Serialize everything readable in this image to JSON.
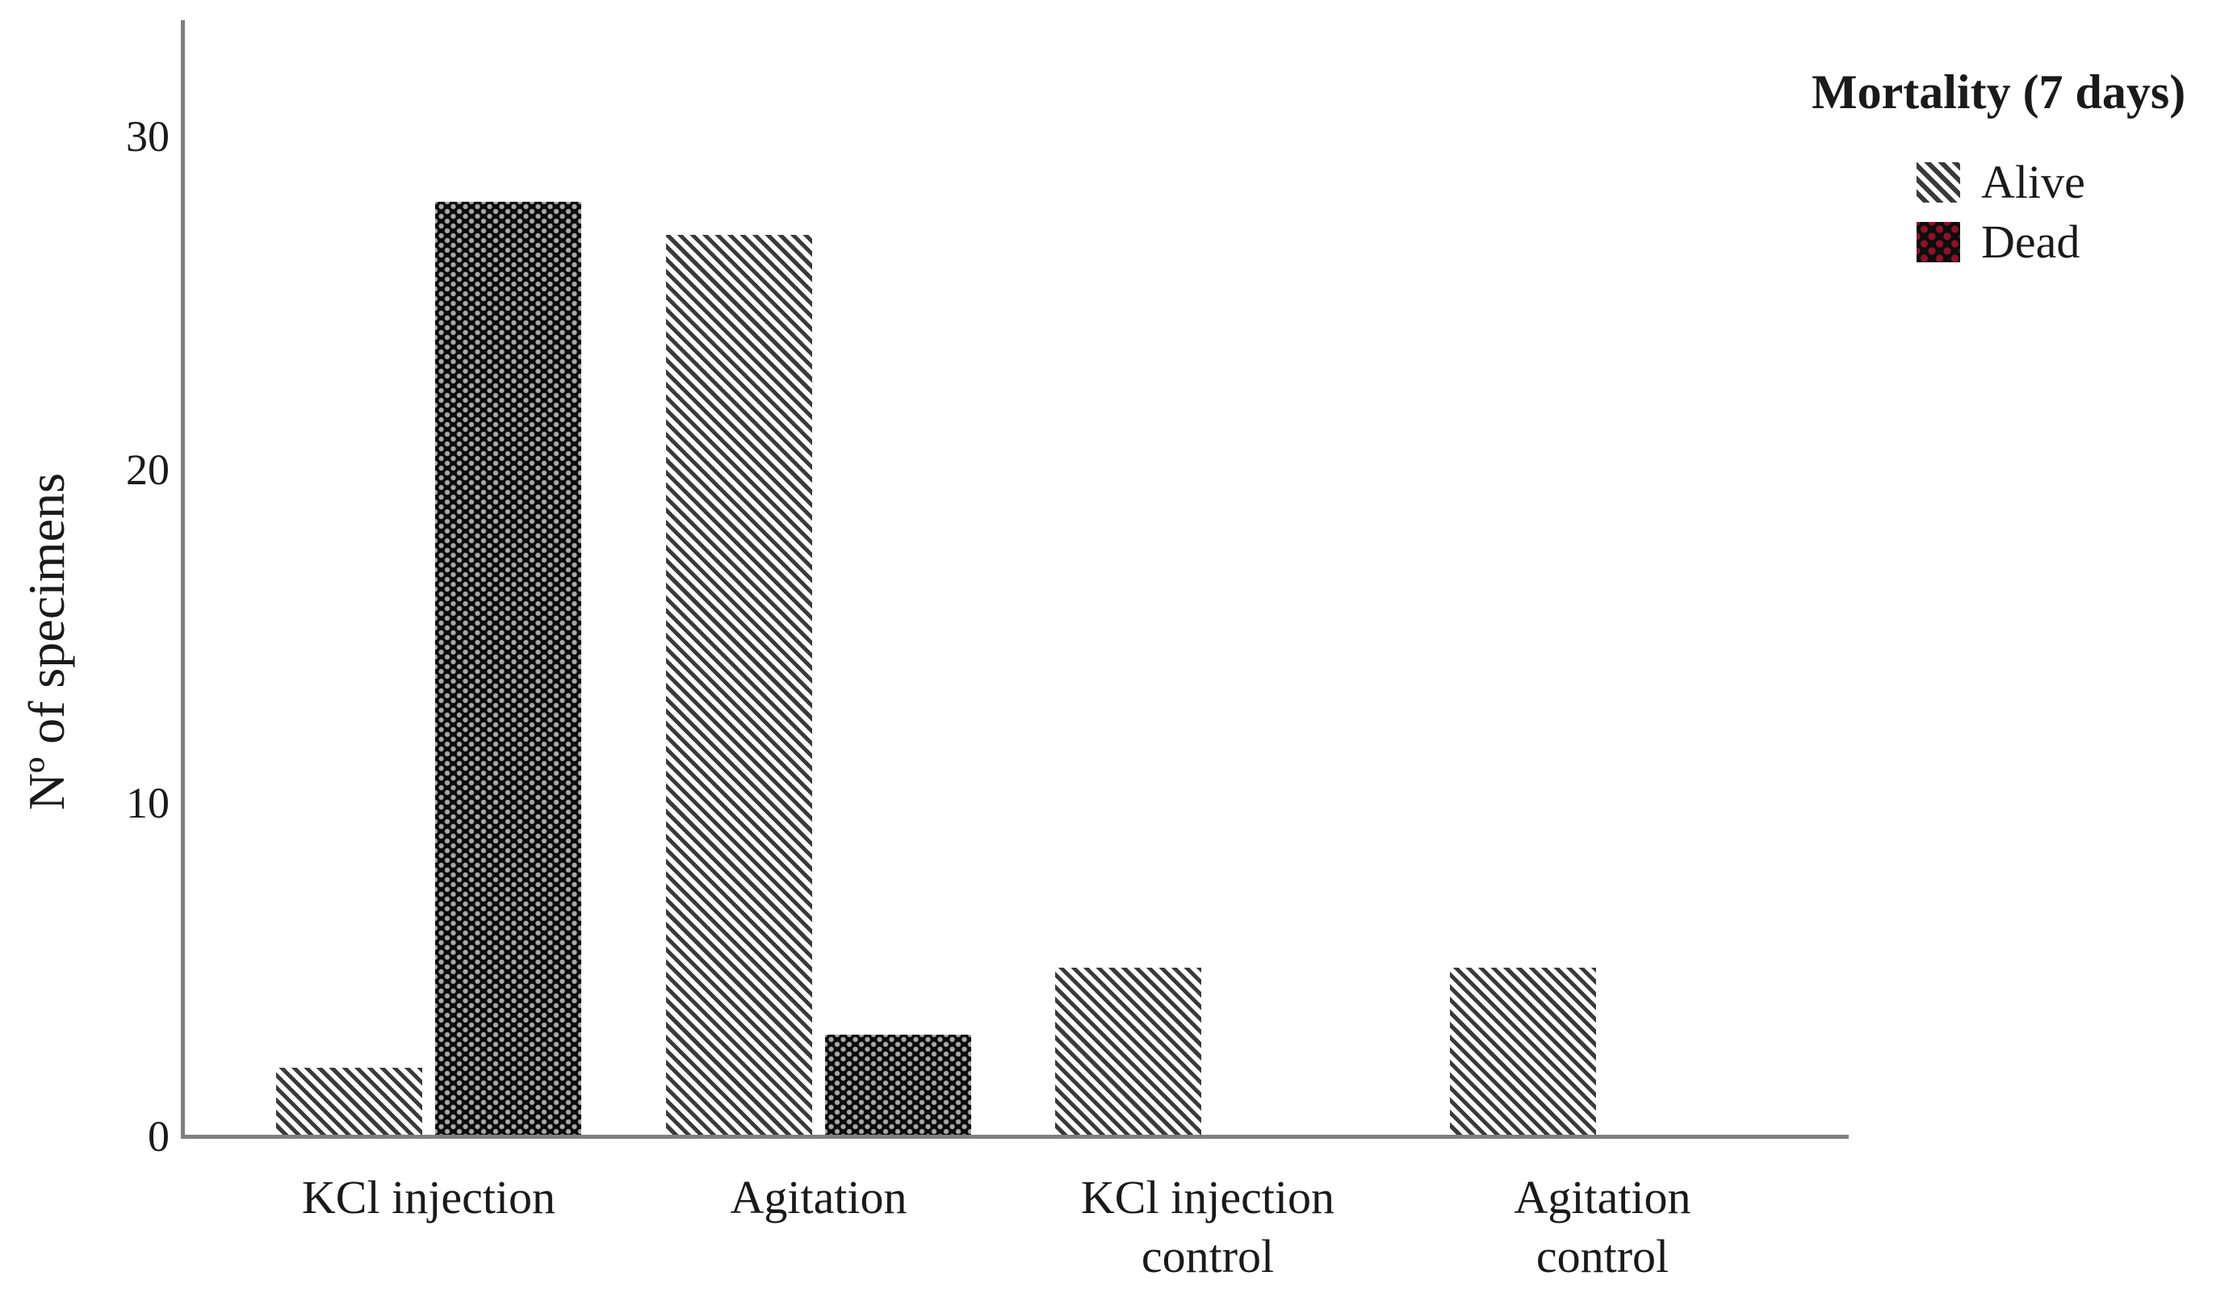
{
  "chart_data": {
    "type": "bar",
    "title": "",
    "categories": [
      "KCl injection",
      "Agitation",
      "KCl injection\ncontrol",
      "Agitation\ncontrol"
    ],
    "series": [
      {
        "name": "Alive",
        "pattern": "white-diagonal-hatch",
        "values": [
          2,
          27,
          5,
          5
        ]
      },
      {
        "name": "Dead",
        "pattern": "black-with-light-dots",
        "values": [
          28,
          3,
          0,
          0
        ]
      }
    ],
    "xlabel": "",
    "ylabel": "Nº of specimens",
    "yticks": [
      "0",
      "10",
      "20",
      "30"
    ],
    "ylim": [
      0,
      32
    ],
    "grid": false,
    "legend": {
      "title": "Mortality (7 days)",
      "position": "top-right"
    }
  },
  "colors": {
    "axis": "#7f7f7f",
    "text": "#1a1a1a",
    "hatch_line": "#3a3a3a",
    "dead_fill": "#0b0b0b",
    "dead_dot_on_bar": "#a9a9a9",
    "dead_dot_on_legend_swatch": "#8e1228",
    "background": "#ffffff"
  }
}
